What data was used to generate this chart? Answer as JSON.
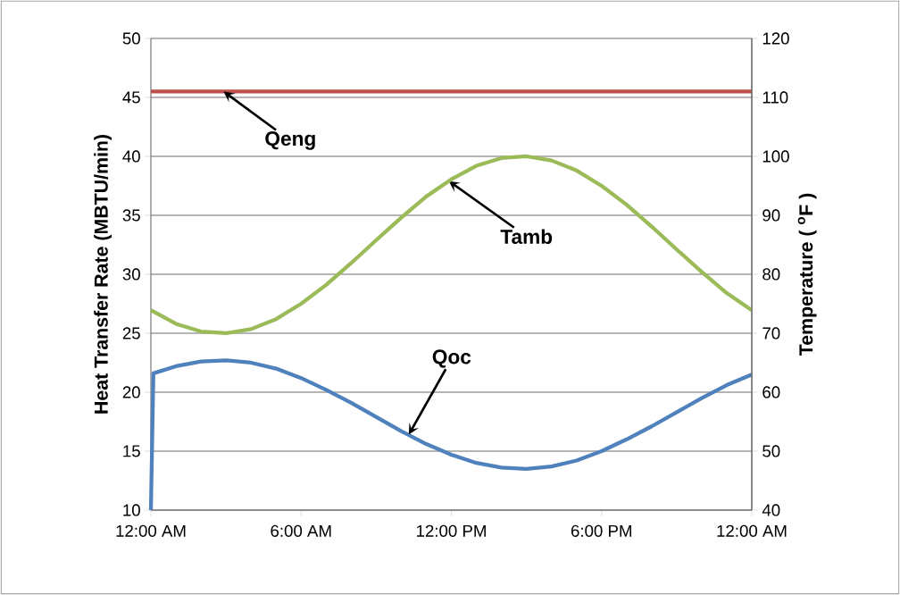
{
  "chart_data": {
    "type": "line",
    "ylabel": "Heat Transfer Rate (MBTU/min)",
    "y2label": "Temperature ( $^{o}$F )",
    "xlim": [
      0,
      24
    ],
    "xticks": [
      {
        "value": 0,
        "label": "12:00 AM"
      },
      {
        "value": 6,
        "label": "6:00 AM"
      },
      {
        "value": 12,
        "label": "12:00 PM"
      },
      {
        "value": 18,
        "label": "6:00 PM"
      },
      {
        "value": 24,
        "label": "12:00 AM"
      }
    ],
    "ylim": [
      10,
      50
    ],
    "yticks": [
      10,
      15,
      20,
      25,
      30,
      35,
      40,
      45,
      50
    ],
    "y2lim": [
      40,
      120
    ],
    "y2ticks": [
      40,
      50,
      60,
      70,
      80,
      90,
      100,
      110,
      120
    ],
    "grid": "y",
    "marker": "none",
    "line_style": "solid",
    "series": [
      {
        "color": "#c0504d",
        "x": [
          0,
          24
        ],
        "values": [
          45.5,
          45.5
        ]
      },
      {
        "color": "#9bbb59",
        "axis": "y2",
        "x": [
          0,
          1,
          2,
          3,
          4,
          5,
          6,
          7,
          8,
          9,
          10,
          11,
          12,
          13,
          14,
          15,
          16,
          17,
          18,
          19,
          20,
          21,
          22,
          23,
          24
        ],
        "values": [
          73.9,
          71.6,
          70.3,
          70.0,
          70.7,
          72.4,
          75.0,
          78.2,
          81.9,
          85.8,
          89.6,
          93.2,
          96.1,
          98.4,
          99.7,
          100.0,
          99.3,
          97.6,
          95.0,
          91.8,
          88.1,
          84.2,
          80.4,
          76.8,
          73.9
        ]
      },
      {
        "color": "#4f81bd",
        "x": [
          0,
          0.1,
          1,
          2,
          3,
          4,
          5,
          6,
          7,
          8,
          9,
          10,
          11,
          12,
          13,
          14,
          15,
          16,
          17,
          18,
          19,
          20,
          21,
          22,
          23,
          24
        ],
        "values": [
          10,
          21.6,
          22.2,
          22.6,
          22.7,
          22.5,
          22.0,
          21.2,
          20.2,
          19.1,
          17.9,
          16.7,
          15.6,
          14.7,
          14.0,
          13.6,
          13.5,
          13.7,
          14.2,
          15.0,
          16.0,
          17.1,
          18.3,
          19.5,
          20.6,
          21.5
        ]
      }
    ],
    "annotations": [
      {
        "text": "Qeng",
        "x": 2.9,
        "y": 45.5
      },
      {
        "text": "Tamb",
        "x": 11.9,
        "y": 37.9
      },
      {
        "text": "Qoc",
        "x": 10.3,
        "y": 16.4
      }
    ]
  }
}
